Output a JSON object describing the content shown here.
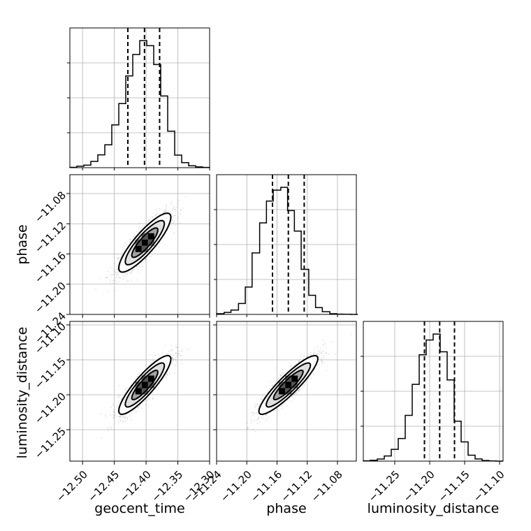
{
  "chart_data": {
    "type": "corner",
    "grid": true,
    "parameters": [
      {
        "name": "geocent_time",
        "xlim": [
          -12.52,
          -12.3
        ],
        "ticks": [
          -12.5,
          -12.45,
          -12.4,
          -12.35,
          -12.3
        ],
        "tick_labels": [
          "−12.50",
          "−12.45",
          "−12.40",
          "−12.35",
          "−12.30"
        ],
        "quantiles": [
          -12.4287,
          -12.4025,
          -12.3787
        ],
        "histogram": {
          "edges": [
            -12.52,
            -12.509,
            -12.498,
            -12.487,
            -12.476,
            -12.465,
            -12.454,
            -12.443,
            -12.432,
            -12.421,
            -12.41,
            -12.399,
            -12.388,
            -12.377,
            -12.366,
            -12.355,
            -12.344,
            -12.333,
            -12.322,
            -12.311,
            -12.3
          ],
          "counts": [
            0.3,
            1.2,
            2.0,
            5.0,
            10.2,
            18.2,
            34.0,
            51.0,
            73.0,
            90.0,
            101.0,
            97.0,
            82.0,
            57.0,
            29.0,
            10.0,
            4.0,
            1.5,
            0.6,
            0.2
          ]
        }
      },
      {
        "name": "phase",
        "xlim": [
          -11.24,
          -11.055
        ],
        "ticks": [
          -11.24,
          -11.2,
          -11.16,
          -11.12,
          -11.08
        ],
        "tick_labels": [
          "−11.24",
          "−11.20",
          "−11.16",
          "−11.12",
          "−11.08"
        ],
        "quantiles": [
          -11.166,
          -11.145,
          -11.124
        ],
        "histogram": {
          "edges": [
            -11.24,
            -11.23,
            -11.221,
            -11.211,
            -11.202,
            -11.193,
            -11.183,
            -11.174,
            -11.165,
            -11.155,
            -11.146,
            -11.137,
            -11.128,
            -11.118,
            -11.109,
            -11.1,
            -11.09,
            -11.081,
            -11.072,
            -11.062,
            -11.053
          ],
          "counts": [
            0.5,
            1.5,
            3.2,
            8.0,
            20.0,
            45.0,
            67.0,
            83.0,
            91.0,
            93.0,
            76.0,
            61.0,
            33.0,
            14.0,
            5.0,
            2.0,
            0.5,
            0.2,
            0.1,
            0.0
          ]
        }
      },
      {
        "name": "luminosity_distance",
        "xlim": [
          -11.295,
          -11.095
        ],
        "ticks": [
          -11.25,
          -11.2,
          -11.15,
          -11.1
        ],
        "tick_labels": [
          "−11.25",
          "−11.20",
          "−11.15",
          "−11.10"
        ],
        "quantiles": [
          -11.2075,
          -11.1857,
          -11.1645
        ],
        "histogram": {
          "edges": [
            -11.295,
            -11.285,
            -11.275,
            -11.265,
            -11.255,
            -11.245,
            -11.235,
            -11.225,
            -11.215,
            -11.205,
            -11.195,
            -11.185,
            -11.175,
            -11.165,
            -11.155,
            -11.145,
            -11.135,
            -11.125,
            -11.115,
            -11.105,
            -11.095
          ],
          "counts": [
            0.2,
            0.6,
            1.4,
            3.5,
            8.0,
            15.3,
            31.0,
            52.0,
            72.0,
            82.0,
            86.0,
            74.0,
            55.0,
            27.0,
            13.0,
            4.0,
            1.5,
            0.4,
            0.1,
            0.0
          ]
        }
      }
    ],
    "panels_2d": [
      {
        "x": "geocent_time",
        "y": "phase",
        "ylim": [
          -11.24,
          -11.055
        ],
        "yticks": [
          -11.24,
          -11.2,
          -11.16,
          -11.12,
          -11.08
        ],
        "ytick_labels": [
          "−11.24",
          "−11.20",
          "−11.16",
          "−11.12",
          "−11.08"
        ],
        "center": [
          -12.402,
          -11.145
        ],
        "sigma": [
          0.0205,
          0.0195
        ],
        "correlation": 0.86
      },
      {
        "x": "geocent_time",
        "y": "luminosity_distance",
        "ylim": [
          -11.295,
          -11.095
        ],
        "yticks": [
          -11.25,
          -11.2,
          -11.15,
          -11.1
        ],
        "ytick_labels": [
          "−11.25",
          "−11.20",
          "−11.15",
          "−11.10"
        ],
        "center": [
          -12.402,
          -11.186
        ],
        "sigma": [
          0.0205,
          0.021
        ],
        "correlation": 0.88
      },
      {
        "x": "phase",
        "y": "luminosity_distance",
        "ylim": [
          -11.295,
          -11.095
        ],
        "yticks": [
          -11.25,
          -11.2,
          -11.15,
          -11.1
        ],
        "ytick_labels": [
          "−11.25",
          "−11.20",
          "−11.15",
          "−11.10"
        ],
        "center": [
          -11.145,
          -11.186
        ],
        "sigma": [
          0.0195,
          0.021
        ],
        "correlation": 0.9
      }
    ],
    "contour_levels_sigma": [
      0.5,
      1.0,
      1.5,
      2.0
    ],
    "colors": {
      "line": "#000000",
      "points": "#000000",
      "grid": "#b0b0b0",
      "fill_light": "#ffffff",
      "fill_mid": "#c8c8c8",
      "fill_dark": "#888888",
      "fill_core": "#000000"
    }
  },
  "labels": {
    "x_geocent_time": "geocent_time",
    "x_phase": "phase",
    "x_luminosity_distance": "luminosity_distance",
    "y_phase": "phase",
    "y_luminosity_distance": "luminosity_distance"
  }
}
